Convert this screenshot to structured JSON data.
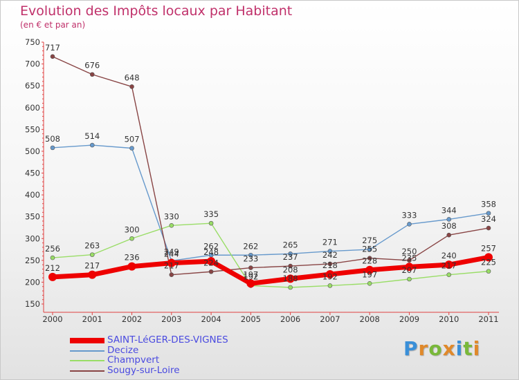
{
  "header": {
    "title": "Evolution des Impôts locaux par Habitant",
    "subtitle": "(en € et par an)"
  },
  "logo": {
    "letters": [
      "P",
      "r",
      "o",
      "x",
      "i",
      "t",
      "i"
    ],
    "colors": [
      "#3a8fd8",
      "#e0892a",
      "#79b83a",
      "#e0892a",
      "#3a8fd8",
      "#79b83a",
      "#e0892a"
    ]
  },
  "chart_data": {
    "type": "line",
    "title": "Evolution des Impôts locaux par Habitant",
    "subtitle": "(en € et par an)",
    "xlabel": "",
    "ylabel": "",
    "ylim": [
      150,
      750
    ],
    "yticks": [
      150,
      200,
      250,
      300,
      350,
      400,
      450,
      500,
      550,
      600,
      650,
      700,
      750
    ],
    "grid": false,
    "legend_position": "bottom-left",
    "categories": [
      "2000",
      "2001",
      "2002",
      "2003",
      "2004",
      "2005",
      "2006",
      "2007",
      "2008",
      "2009",
      "2010",
      "2011"
    ],
    "series": [
      {
        "name": "SAINT-LéGER-DES-VIGNES",
        "color": "#ee0000",
        "thick": true,
        "values": [
          212,
          217,
          236,
          244,
          248,
          197,
          208,
          218,
          228,
          235,
          240,
          257
        ]
      },
      {
        "name": "Decize",
        "color": "#6699cc",
        "thick": false,
        "values": [
          508,
          514,
          507,
          249,
          262,
          262,
          265,
          271,
          275,
          333,
          344,
          358
        ]
      },
      {
        "name": "Champvert",
        "color": "#99dd66",
        "thick": false,
        "values": [
          256,
          263,
          300,
          330,
          335,
          192,
          188,
          192,
          197,
          207,
          217,
          225
        ]
      },
      {
        "name": "Sougy-sur-Loire",
        "color": "#884444",
        "thick": false,
        "values": [
          717,
          676,
          648,
          217,
          224,
          233,
          237,
          242,
          255,
          250,
          308,
          324
        ]
      }
    ]
  }
}
